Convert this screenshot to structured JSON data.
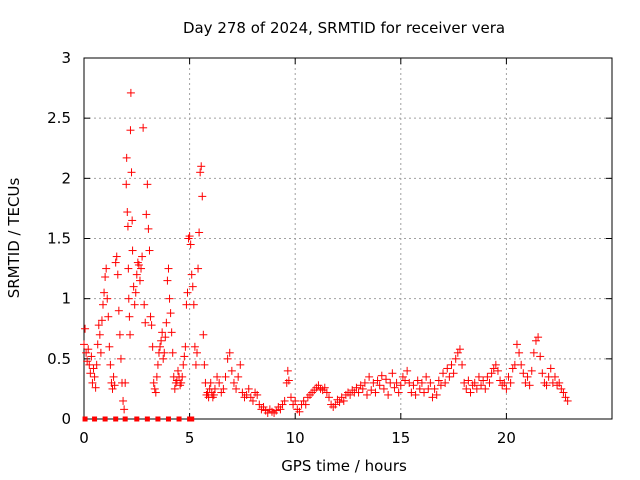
{
  "chart_data": {
    "type": "scatter",
    "title": "Day 278 of 2024, SRMTID for receiver vera",
    "xlabel": "GPS time / hours",
    "ylabel": "SRMTID / TECUs",
    "xlim": [
      0,
      25
    ],
    "ylim": [
      0,
      3
    ],
    "xticks": [
      0,
      5,
      10,
      15,
      20
    ],
    "yticks": [
      0,
      0.5,
      1,
      1.5,
      2,
      2.5,
      3
    ],
    "xtick_labels": [
      "0",
      "5",
      "10",
      "15",
      "20"
    ],
    "ytick_labels": [
      "0",
      "0.5",
      "1",
      "1.5",
      "2",
      "2.5",
      "3"
    ],
    "grid": true,
    "marker": "+",
    "color": "#ff0000",
    "series": [
      {
        "name": "SRMTID",
        "points": [
          [
            0.0,
            0.62
          ],
          [
            0.05,
            0.75
          ],
          [
            0.1,
            0.55
          ],
          [
            0.15,
            0.48
          ],
          [
            0.2,
            0.58
          ],
          [
            0.25,
            0.45
          ],
          [
            0.3,
            0.38
          ],
          [
            0.35,
            0.52
          ],
          [
            0.4,
            0.3
          ],
          [
            0.45,
            0.42
          ],
          [
            0.5,
            0.35
          ],
          [
            0.55,
            0.26
          ],
          [
            0.6,
            0.45
          ],
          [
            0.65,
            0.62
          ],
          [
            0.7,
            0.78
          ],
          [
            0.75,
            0.7
          ],
          [
            0.8,
            0.55
          ],
          [
            0.85,
            0.82
          ],
          [
            0.9,
            0.95
          ],
          [
            0.95,
            1.05
          ],
          [
            1.0,
            1.18
          ],
          [
            1.05,
            1.25
          ],
          [
            1.1,
            1.0
          ],
          [
            1.15,
            0.85
          ],
          [
            1.2,
            0.6
          ],
          [
            1.25,
            0.45
          ],
          [
            1.3,
            0.3
          ],
          [
            1.35,
            0.25
          ],
          [
            1.4,
            0.35
          ],
          [
            1.45,
            0.28
          ],
          [
            1.5,
            1.3
          ],
          [
            1.55,
            1.35
          ],
          [
            1.6,
            1.2
          ],
          [
            1.65,
            0.9
          ],
          [
            1.7,
            0.7
          ],
          [
            1.75,
            0.5
          ],
          [
            1.8,
            0.3
          ],
          [
            1.85,
            0.15
          ],
          [
            1.9,
            0.08
          ],
          [
            1.95,
            0.3
          ],
          [
            2.0,
            1.95
          ],
          [
            2.02,
            2.17
          ],
          [
            2.05,
            1.72
          ],
          [
            2.08,
            1.6
          ],
          [
            2.1,
            1.25
          ],
          [
            2.12,
            1.0
          ],
          [
            2.15,
            0.85
          ],
          [
            2.18,
            0.7
          ],
          [
            2.2,
            2.4
          ],
          [
            2.22,
            2.71
          ],
          [
            2.25,
            2.05
          ],
          [
            2.28,
            1.65
          ],
          [
            2.3,
            1.4
          ],
          [
            2.35,
            1.1
          ],
          [
            2.4,
            0.95
          ],
          [
            2.45,
            1.05
          ],
          [
            2.5,
            1.2
          ],
          [
            2.55,
            1.3
          ],
          [
            2.6,
            1.28
          ],
          [
            2.65,
            1.15
          ],
          [
            2.7,
            1.25
          ],
          [
            2.75,
            1.35
          ],
          [
            2.8,
            2.42
          ],
          [
            2.85,
            0.95
          ],
          [
            2.9,
            0.8
          ],
          [
            2.95,
            1.7
          ],
          [
            3.0,
            1.95
          ],
          [
            3.05,
            1.58
          ],
          [
            3.1,
            1.4
          ],
          [
            3.15,
            0.85
          ],
          [
            3.2,
            0.78
          ],
          [
            3.25,
            0.6
          ],
          [
            3.3,
            0.3
          ],
          [
            3.35,
            0.25
          ],
          [
            3.4,
            0.22
          ],
          [
            3.45,
            0.35
          ],
          [
            3.5,
            0.45
          ],
          [
            3.55,
            0.55
          ],
          [
            3.6,
            0.6
          ],
          [
            3.65,
            0.65
          ],
          [
            3.7,
            0.72
          ],
          [
            3.75,
            0.5
          ],
          [
            3.8,
            0.55
          ],
          [
            3.85,
            0.68
          ],
          [
            3.9,
            0.8
          ],
          [
            3.95,
            1.15
          ],
          [
            4.0,
            1.25
          ],
          [
            4.05,
            1.0
          ],
          [
            4.1,
            0.88
          ],
          [
            4.15,
            0.72
          ],
          [
            4.2,
            0.55
          ],
          [
            4.25,
            0.35
          ],
          [
            4.3,
            0.25
          ],
          [
            4.35,
            0.3
          ],
          [
            4.4,
            0.32
          ],
          [
            4.45,
            0.4
          ],
          [
            4.5,
            0.35
          ],
          [
            4.55,
            0.28
          ],
          [
            4.6,
            0.3
          ],
          [
            4.65,
            0.35
          ],
          [
            4.7,
            0.45
          ],
          [
            4.75,
            0.52
          ],
          [
            4.8,
            0.6
          ],
          [
            4.85,
            0.95
          ],
          [
            4.9,
            1.05
          ],
          [
            4.95,
            1.5
          ],
          [
            5.0,
            1.52
          ],
          [
            5.05,
            1.45
          ],
          [
            5.1,
            1.2
          ],
          [
            5.15,
            1.1
          ],
          [
            5.2,
            0.95
          ],
          [
            5.25,
            0.6
          ],
          [
            5.3,
            0.45
          ],
          [
            5.35,
            0.55
          ],
          [
            5.4,
            1.25
          ],
          [
            5.45,
            1.55
          ],
          [
            5.5,
            2.05
          ],
          [
            5.55,
            2.1
          ],
          [
            5.6,
            1.85
          ],
          [
            5.65,
            0.7
          ],
          [
            5.7,
            0.45
          ],
          [
            5.75,
            0.3
          ],
          [
            5.8,
            0.2
          ],
          [
            5.85,
            0.22
          ],
          [
            5.9,
            0.18
          ],
          [
            5.95,
            0.25
          ],
          [
            6.0,
            0.3
          ],
          [
            6.05,
            0.22
          ],
          [
            6.1,
            0.18
          ],
          [
            6.15,
            0.2
          ],
          [
            6.2,
            0.25
          ],
          [
            6.3,
            0.35
          ],
          [
            6.4,
            0.3
          ],
          [
            6.5,
            0.22
          ],
          [
            6.6,
            0.25
          ],
          [
            6.7,
            0.35
          ],
          [
            6.8,
            0.5
          ],
          [
            6.9,
            0.55
          ],
          [
            7.0,
            0.4
          ],
          [
            7.1,
            0.3
          ],
          [
            7.2,
            0.25
          ],
          [
            7.3,
            0.35
          ],
          [
            7.4,
            0.45
          ],
          [
            7.5,
            0.22
          ],
          [
            7.6,
            0.18
          ],
          [
            7.7,
            0.2
          ],
          [
            7.8,
            0.25
          ],
          [
            7.9,
            0.18
          ],
          [
            8.0,
            0.15
          ],
          [
            8.1,
            0.22
          ],
          [
            8.2,
            0.2
          ],
          [
            8.3,
            0.12
          ],
          [
            8.4,
            0.08
          ],
          [
            8.5,
            0.1
          ],
          [
            8.6,
            0.07
          ],
          [
            8.7,
            0.05
          ],
          [
            8.8,
            0.08
          ],
          [
            8.9,
            0.06
          ],
          [
            9.0,
            0.05
          ],
          [
            9.1,
            0.07
          ],
          [
            9.2,
            0.1
          ],
          [
            9.3,
            0.08
          ],
          [
            9.4,
            0.12
          ],
          [
            9.5,
            0.15
          ],
          [
            9.6,
            0.3
          ],
          [
            9.65,
            0.4
          ],
          [
            9.7,
            0.32
          ],
          [
            9.8,
            0.18
          ],
          [
            9.9,
            0.12
          ],
          [
            10.0,
            0.15
          ],
          [
            10.1,
            0.08
          ],
          [
            10.2,
            0.06
          ],
          [
            10.3,
            0.12
          ],
          [
            10.4,
            0.15
          ],
          [
            10.5,
            0.12
          ],
          [
            10.6,
            0.18
          ],
          [
            10.7,
            0.2
          ],
          [
            10.8,
            0.22
          ],
          [
            10.9,
            0.24
          ],
          [
            11.0,
            0.26
          ],
          [
            11.1,
            0.28
          ],
          [
            11.2,
            0.25
          ],
          [
            11.3,
            0.24
          ],
          [
            11.4,
            0.26
          ],
          [
            11.5,
            0.22
          ],
          [
            11.6,
            0.18
          ],
          [
            11.7,
            0.12
          ],
          [
            11.8,
            0.1
          ],
          [
            11.9,
            0.12
          ],
          [
            12.0,
            0.16
          ],
          [
            12.1,
            0.14
          ],
          [
            12.2,
            0.18
          ],
          [
            12.3,
            0.15
          ],
          [
            12.4,
            0.2
          ],
          [
            12.5,
            0.22
          ],
          [
            12.6,
            0.2
          ],
          [
            12.7,
            0.24
          ],
          [
            12.8,
            0.22
          ],
          [
            12.9,
            0.26
          ],
          [
            13.0,
            0.22
          ],
          [
            13.1,
            0.28
          ],
          [
            13.2,
            0.25
          ],
          [
            13.3,
            0.3
          ],
          [
            13.4,
            0.2
          ],
          [
            13.5,
            0.35
          ],
          [
            13.6,
            0.24
          ],
          [
            13.7,
            0.3
          ],
          [
            13.8,
            0.22
          ],
          [
            13.9,
            0.32
          ],
          [
            14.0,
            0.28
          ],
          [
            14.1,
            0.36
          ],
          [
            14.2,
            0.25
          ],
          [
            14.3,
            0.33
          ],
          [
            14.4,
            0.2
          ],
          [
            14.5,
            0.3
          ],
          [
            14.6,
            0.38
          ],
          [
            14.7,
            0.26
          ],
          [
            14.8,
            0.3
          ],
          [
            14.9,
            0.22
          ],
          [
            15.0,
            0.28
          ],
          [
            15.1,
            0.35
          ],
          [
            15.2,
            0.32
          ],
          [
            15.3,
            0.4
          ],
          [
            15.4,
            0.3
          ],
          [
            15.5,
            0.22
          ],
          [
            15.6,
            0.28
          ],
          [
            15.7,
            0.2
          ],
          [
            15.8,
            0.32
          ],
          [
            15.9,
            0.25
          ],
          [
            16.0,
            0.3
          ],
          [
            16.1,
            0.22
          ],
          [
            16.2,
            0.35
          ],
          [
            16.3,
            0.25
          ],
          [
            16.4,
            0.3
          ],
          [
            16.5,
            0.18
          ],
          [
            16.6,
            0.25
          ],
          [
            16.7,
            0.2
          ],
          [
            16.8,
            0.32
          ],
          [
            16.9,
            0.28
          ],
          [
            17.0,
            0.38
          ],
          [
            17.1,
            0.3
          ],
          [
            17.2,
            0.42
          ],
          [
            17.3,
            0.35
          ],
          [
            17.4,
            0.45
          ],
          [
            17.5,
            0.38
          ],
          [
            17.6,
            0.5
          ],
          [
            17.7,
            0.55
          ],
          [
            17.8,
            0.58
          ],
          [
            17.9,
            0.45
          ],
          [
            18.0,
            0.3
          ],
          [
            18.1,
            0.25
          ],
          [
            18.2,
            0.32
          ],
          [
            18.3,
            0.22
          ],
          [
            18.4,
            0.28
          ],
          [
            18.5,
            0.3
          ],
          [
            18.6,
            0.25
          ],
          [
            18.7,
            0.35
          ],
          [
            18.8,
            0.28
          ],
          [
            18.9,
            0.32
          ],
          [
            19.0,
            0.25
          ],
          [
            19.1,
            0.35
          ],
          [
            19.2,
            0.3
          ],
          [
            19.3,
            0.38
          ],
          [
            19.4,
            0.42
          ],
          [
            19.5,
            0.45
          ],
          [
            19.6,
            0.4
          ],
          [
            19.7,
            0.32
          ],
          [
            19.8,
            0.28
          ],
          [
            19.9,
            0.3
          ],
          [
            20.0,
            0.25
          ],
          [
            20.1,
            0.35
          ],
          [
            20.2,
            0.3
          ],
          [
            20.3,
            0.42
          ],
          [
            20.4,
            0.45
          ],
          [
            20.5,
            0.62
          ],
          [
            20.6,
            0.55
          ],
          [
            20.7,
            0.45
          ],
          [
            20.8,
            0.38
          ],
          [
            20.9,
            0.3
          ],
          [
            21.0,
            0.35
          ],
          [
            21.1,
            0.28
          ],
          [
            21.2,
            0.4
          ],
          [
            21.3,
            0.55
          ],
          [
            21.4,
            0.65
          ],
          [
            21.5,
            0.68
          ],
          [
            21.6,
            0.52
          ],
          [
            21.7,
            0.38
          ],
          [
            21.8,
            0.3
          ],
          [
            21.9,
            0.28
          ],
          [
            22.0,
            0.35
          ],
          [
            22.1,
            0.42
          ],
          [
            22.2,
            0.3
          ],
          [
            22.3,
            0.35
          ],
          [
            22.4,
            0.28
          ],
          [
            22.5,
            0.3
          ],
          [
            22.6,
            0.25
          ],
          [
            22.7,
            0.22
          ],
          [
            22.8,
            0.18
          ],
          [
            22.9,
            0.15
          ]
        ],
        "zeros": [
          0.05,
          0.5,
          1.0,
          1.5,
          1.95,
          2.5,
          3.0,
          3.5,
          4.0,
          4.5,
          5.0,
          5.1
        ]
      }
    ]
  }
}
